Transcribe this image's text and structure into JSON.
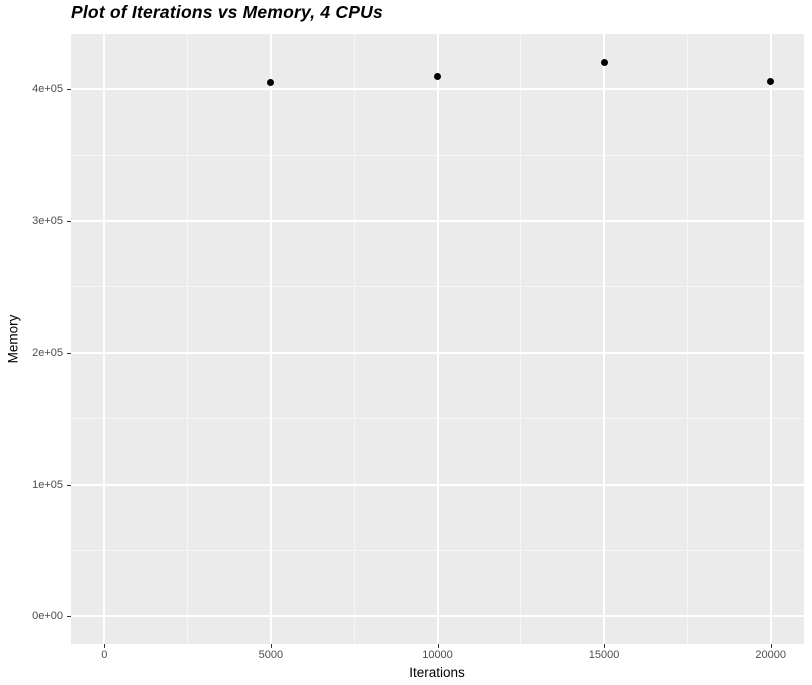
{
  "chart_data": {
    "type": "scatter",
    "title": "Plot of Iterations vs Memory, 4 CPUs",
    "xlabel": "Iterations",
    "ylabel": "Memory",
    "points": [
      {
        "x": 5000,
        "y": 405000
      },
      {
        "x": 10000,
        "y": 410000
      },
      {
        "x": 15000,
        "y": 420000
      },
      {
        "x": 20000,
        "y": 406000
      }
    ],
    "xlim": [
      -1000,
      21000
    ],
    "ylim": [
      -21000,
      442000
    ],
    "x_ticks": [
      {
        "value": 0,
        "label": "0"
      },
      {
        "value": 5000,
        "label": "5000"
      },
      {
        "value": 10000,
        "label": "10000"
      },
      {
        "value": 15000,
        "label": "15000"
      },
      {
        "value": 20000,
        "label": "20000"
      }
    ],
    "y_ticks": [
      {
        "value": 0,
        "label": "0e+00"
      },
      {
        "value": 100000,
        "label": "1e+05"
      },
      {
        "value": 200000,
        "label": "2e+05"
      },
      {
        "value": 300000,
        "label": "3e+05"
      },
      {
        "value": 400000,
        "label": "4e+05"
      }
    ],
    "x_minor_ticks": [
      2500,
      7500,
      12500,
      17500
    ],
    "y_minor_ticks": [
      50000,
      150000,
      250000,
      350000
    ],
    "grid": "on",
    "legend": "none",
    "style": {
      "background": "#FFFFFF",
      "panel_bg": "#EBEBEB",
      "grid_major_color": "#FFFFFF",
      "grid_minor_color": "#F6F6F6",
      "point_color": "#000000",
      "tick_label_color": "#4D4D4D",
      "tick_mark_color": "#333333",
      "axis_title_color": "#000000",
      "title_color": "#000000"
    }
  }
}
